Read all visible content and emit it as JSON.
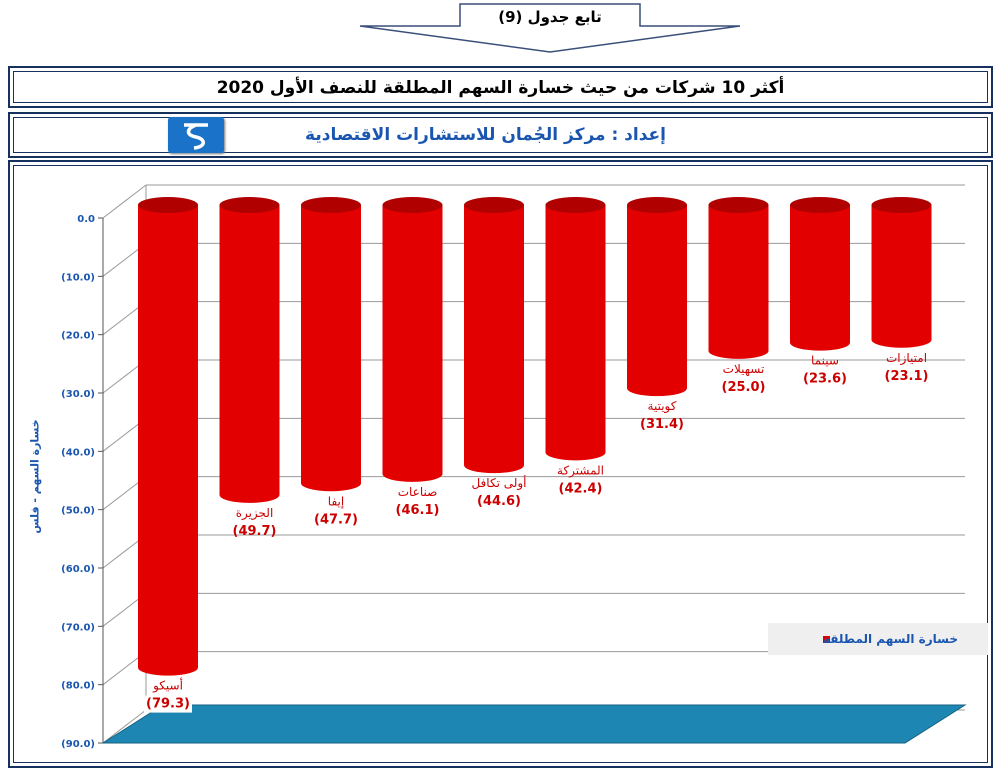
{
  "header": {
    "banner_label": "تابع جدول (9)",
    "title": "أكثر 10 شركات من حيث خسارة السهم المطلقة للنصف الأول 2020",
    "subtitle": "إعداد : مركز الجُمان للاستشارات الاقتصادية"
  },
  "colors": {
    "bar": "#e30000",
    "bar_dark": "#b00000",
    "floor": "#1e86b3",
    "frame": "#16315e",
    "axis_text": "#1a56b0",
    "label_text": "#cc0000"
  },
  "chart_data": {
    "type": "bar",
    "title": "",
    "xlabel": "",
    "ylabel": "خسارة السهم - فلس",
    "ylim": [
      -90,
      0
    ],
    "yticks": [
      "0.0",
      "(10.0)",
      "(20.0)",
      "(30.0)",
      "(40.0)",
      "(50.0)",
      "(60.0)",
      "(70.0)",
      "(80.0)",
      "(90.0)"
    ],
    "grid": true,
    "legend_position": "right",
    "categories": [
      "أسيكو",
      "الجزيرة",
      "إيفا",
      "صناعات",
      "أولى تكافل",
      "المشتركة",
      "كويتية",
      "تسهيلات",
      "سينما",
      "امتيازات"
    ],
    "value_labels": [
      "(79.3)",
      "(49.7)",
      "(47.7)",
      "(46.1)",
      "(44.6)",
      "(42.4)",
      "(31.4)",
      "(25.0)",
      "(23.6)",
      "(23.1)"
    ],
    "series": [
      {
        "name": "خسارة السهم المطلقة",
        "values": [
          -79.3,
          -49.7,
          -47.7,
          -46.1,
          -44.6,
          -42.4,
          -31.4,
          -25.0,
          -23.6,
          -23.1
        ]
      }
    ]
  }
}
